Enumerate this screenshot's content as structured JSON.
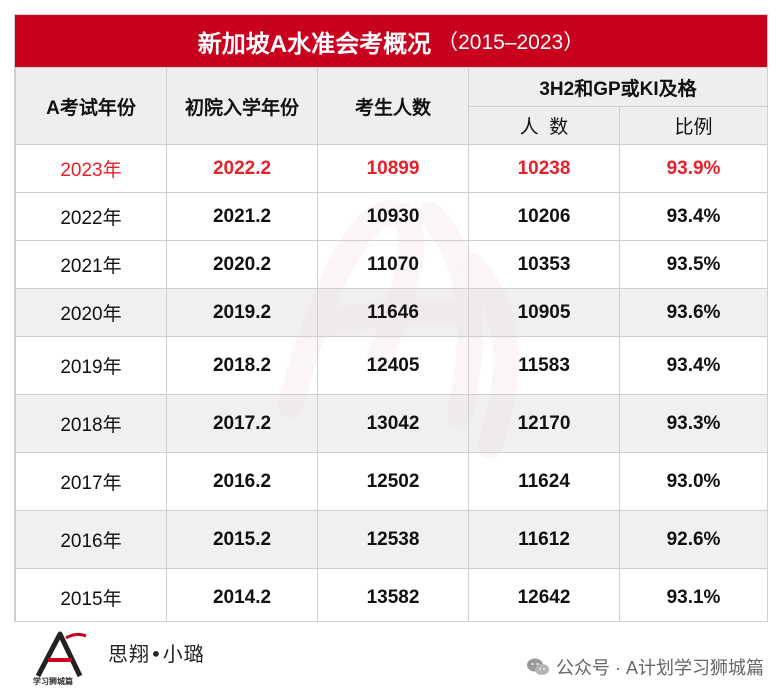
{
  "title": {
    "main": "新加坡A水准会考概况",
    "sub": "（2015–2023）"
  },
  "colors": {
    "title_bg": "#c8001e",
    "highlight_text": "#e8202a"
  },
  "headers": {
    "col1": "A考试年份",
    "col2": "初院入学年份",
    "col3": "考生人数",
    "group": "3H2和GP或KI及格",
    "sub_count": "人  数",
    "sub_ratio": "比例"
  },
  "rows": [
    {
      "exam_year": "2023年",
      "entry_year": "2022.2",
      "candidates": "10899",
      "passed": "10238",
      "ratio": "93.9%"
    },
    {
      "exam_year": "2022年",
      "entry_year": "2021.2",
      "candidates": "10930",
      "passed": "10206",
      "ratio": "93.4%"
    },
    {
      "exam_year": "2021年",
      "entry_year": "2020.2",
      "candidates": "11070",
      "passed": "10353",
      "ratio": "93.5%"
    },
    {
      "exam_year": "2020年",
      "entry_year": "2019.2",
      "candidates": "11646",
      "passed": "10905",
      "ratio": "93.6%"
    },
    {
      "exam_year": "2019年",
      "entry_year": "2018.2",
      "candidates": "12405",
      "passed": "11583",
      "ratio": "93.4%"
    },
    {
      "exam_year": "2018年",
      "entry_year": "2017.2",
      "candidates": "13042",
      "passed": "12170",
      "ratio": "93.3%"
    },
    {
      "exam_year": "2017年",
      "entry_year": "2016.2",
      "candidates": "12502",
      "passed": "11624",
      "ratio": "93.0%"
    },
    {
      "exam_year": "2016年",
      "entry_year": "2015.2",
      "candidates": "12538",
      "passed": "11612",
      "ratio": "92.6%"
    },
    {
      "exam_year": "2015年",
      "entry_year": "2014.2",
      "candidates": "13582",
      "passed": "12642",
      "ratio": "93.1%"
    }
  ],
  "footer": {
    "logo_text": "学习狮城篇",
    "author": "思翔•小璐",
    "wechat_label": "公众号 · A计划学习狮城篇",
    "wechat_icon": "wechat-icon",
    "logo_icon": "logo-icon"
  }
}
